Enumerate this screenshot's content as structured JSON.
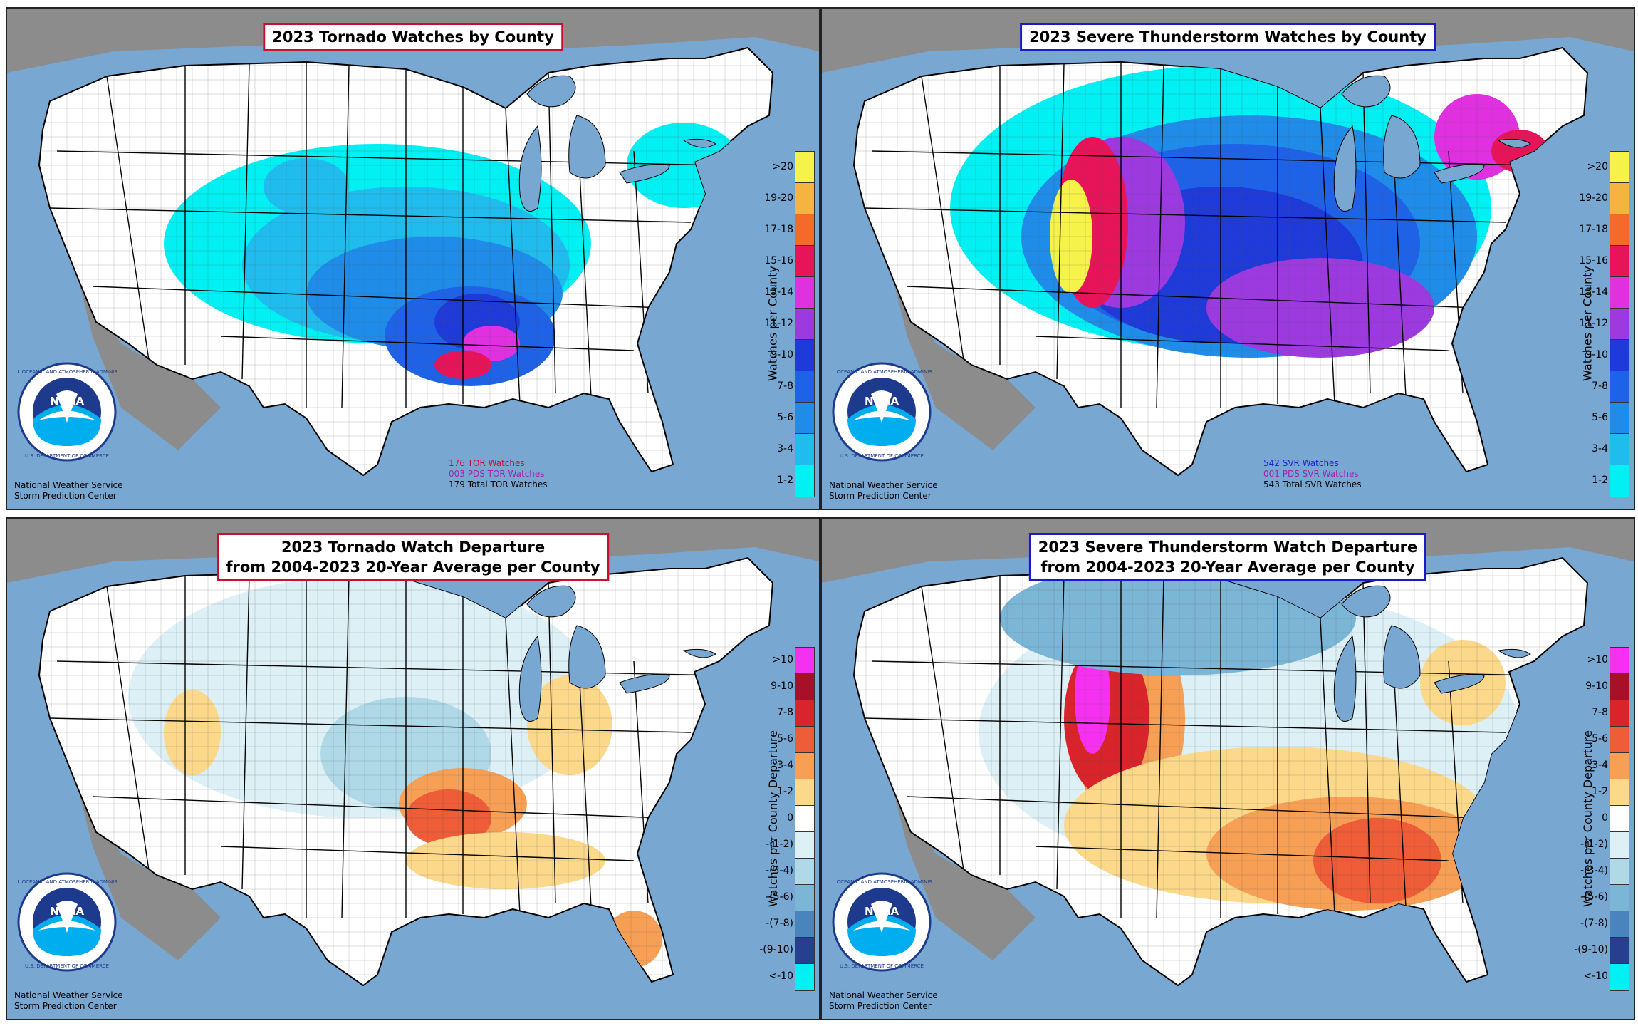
{
  "panels": [
    {
      "id": "tor-watches",
      "title_lines": [
        "2023 Tornado Watches by County"
      ],
      "title_border": "#c8102e",
      "legend_title": "Watches per County",
      "legend": [
        {
          "label": ">20",
          "color": "#f5f24a"
        },
        {
          "label": "19-20",
          "color": "#f5b440"
        },
        {
          "label": "17-18",
          "color": "#f56a2a"
        },
        {
          "label": "15-16",
          "color": "#e8145a"
        },
        {
          "label": "13-14",
          "color": "#e030e0"
        },
        {
          "label": "11-12",
          "color": "#9c3ae0"
        },
        {
          "label": "9-10",
          "color": "#1e3ad8"
        },
        {
          "label": "7-8",
          "color": "#1e62e8"
        },
        {
          "label": "5-6",
          "color": "#1e8ce8"
        },
        {
          "label": "3-4",
          "color": "#20bcee"
        },
        {
          "label": "1-2",
          "color": "#00f0f4"
        }
      ],
      "stats": [
        "176 TOR Watches",
        "003 PDS TOR Watches",
        "179 Total TOR Watches"
      ]
    },
    {
      "id": "svr-watches",
      "title_lines": [
        "2023 Severe Thunderstorm Watches by County"
      ],
      "title_border": "#1a1acc",
      "legend_title": "Watches per County",
      "legend": [
        {
          "label": ">20",
          "color": "#f5f24a"
        },
        {
          "label": "19-20",
          "color": "#f5b440"
        },
        {
          "label": "17-18",
          "color": "#f56a2a"
        },
        {
          "label": "15-16",
          "color": "#e8145a"
        },
        {
          "label": "13-14",
          "color": "#e030e0"
        },
        {
          "label": "11-12",
          "color": "#9c3ae0"
        },
        {
          "label": "9-10",
          "color": "#1e3ad8"
        },
        {
          "label": "7-8",
          "color": "#1e62e8"
        },
        {
          "label": "5-6",
          "color": "#1e8ce8"
        },
        {
          "label": "3-4",
          "color": "#20bcee"
        },
        {
          "label": "1-2",
          "color": "#00f0f4"
        }
      ],
      "stats": [
        "542 SVR Watches",
        "001 PDS SVR Watches",
        "543 Total SVR Watches"
      ]
    },
    {
      "id": "tor-departure",
      "title_lines": [
        "2023 Tornado Watch Departure",
        "from 2004-2023 20-Year Average per County"
      ],
      "title_border": "#c8102e",
      "legend_title": "Watches per County Departure",
      "legend": [
        {
          "label": ">10",
          "color": "#f530f0"
        },
        {
          "label": "9-10",
          "color": "#a8102a"
        },
        {
          "label": "7-8",
          "color": "#d8242a"
        },
        {
          "label": "5-6",
          "color": "#ee5c38"
        },
        {
          "label": "3-4",
          "color": "#f7a055"
        },
        {
          "label": "1-2",
          "color": "#fbd88a"
        },
        {
          "label": "0",
          "color": "#ffffff"
        },
        {
          "label": "-(1-2)",
          "color": "#dcf0f6"
        },
        {
          "label": "-(3-4)",
          "color": "#b0d9e8"
        },
        {
          "label": "-(5-6)",
          "color": "#7cb6d6"
        },
        {
          "label": "-(7-8)",
          "color": "#4a84bc"
        },
        {
          "label": "-(9-10)",
          "color": "#26408f"
        },
        {
          "label": "<-10",
          "color": "#00f0f4"
        }
      ],
      "stats": []
    },
    {
      "id": "svr-departure",
      "title_lines": [
        "2023 Severe Thunderstorm Watch Departure",
        "from 2004-2023 20-Year Average per County"
      ],
      "title_border": "#1a1acc",
      "legend_title": "Watches per County Departure",
      "legend": [
        {
          "label": ">10",
          "color": "#f530f0"
        },
        {
          "label": "9-10",
          "color": "#a8102a"
        },
        {
          "label": "7-8",
          "color": "#d8242a"
        },
        {
          "label": "5-6",
          "color": "#ee5c38"
        },
        {
          "label": "3-4",
          "color": "#f7a055"
        },
        {
          "label": "1-2",
          "color": "#fbd88a"
        },
        {
          "label": "0",
          "color": "#ffffff"
        },
        {
          "label": "-(1-2)",
          "color": "#dcf0f6"
        },
        {
          "label": "-(3-4)",
          "color": "#b0d9e8"
        },
        {
          "label": "-(5-6)",
          "color": "#7cb6d6"
        },
        {
          "label": "-(7-8)",
          "color": "#4a84bc"
        },
        {
          "label": "-(9-10)",
          "color": "#26408f"
        },
        {
          "label": "<-10",
          "color": "#00f0f4"
        }
      ],
      "stats": []
    }
  ],
  "credit": [
    "National Weather Service",
    "Storm Prediction Center"
  ],
  "logo": {
    "text": "NOAA",
    "ring_text": "NATIONAL OCEANIC AND ATMOSPHERIC ADMINISTRATION",
    "ring_text_bottom": "U.S. DEPARTMENT OF COMMERCE"
  },
  "colors": {
    "ocean": "#78a7d2",
    "land_outside": "#8c8c8c",
    "land": "#ffffff"
  }
}
